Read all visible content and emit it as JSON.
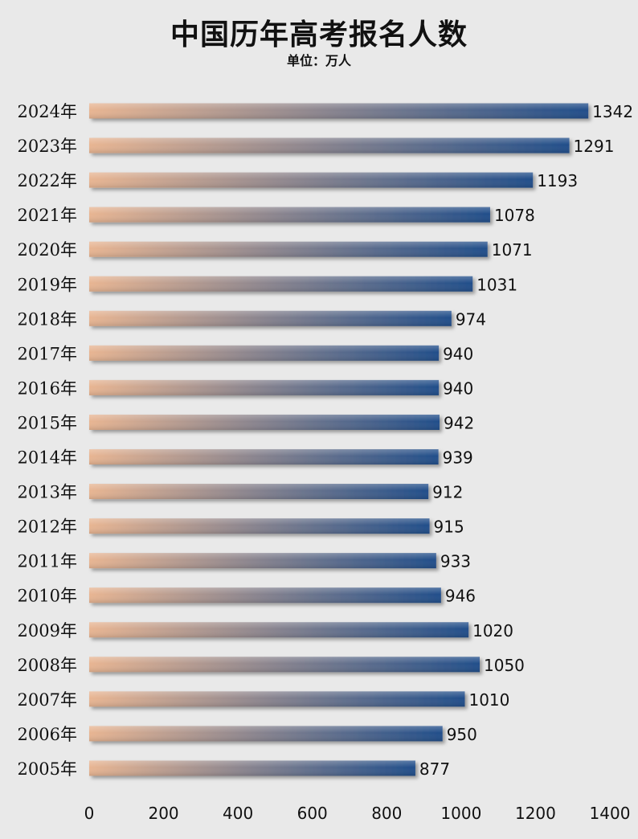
{
  "chart_data": {
    "type": "bar",
    "orientation": "horizontal",
    "title": "中国历年高考报名人数",
    "subtitle": "单位：万人",
    "categories": [
      "2024年",
      "2023年",
      "2022年",
      "2021年",
      "2020年",
      "2019年",
      "2018年",
      "2017年",
      "2016年",
      "2015年",
      "2014年",
      "2013年",
      "2012年",
      "2011年",
      "2010年",
      "2009年",
      "2008年",
      "2007年",
      "2006年",
      "2005年"
    ],
    "values": [
      1342,
      1291,
      1193,
      1078,
      1071,
      1031,
      974,
      940,
      940,
      942,
      939,
      912,
      915,
      933,
      946,
      1020,
      1050,
      1010,
      950,
      877
    ],
    "xlim": [
      0,
      1400
    ],
    "xticks": [
      0,
      200,
      400,
      600,
      800,
      1000,
      1200,
      1400
    ],
    "grid": false,
    "legend": "none",
    "colors": {
      "bar_start": "#e8b592",
      "bar_end": "#214e8a",
      "background": "#e9e9e9"
    }
  }
}
